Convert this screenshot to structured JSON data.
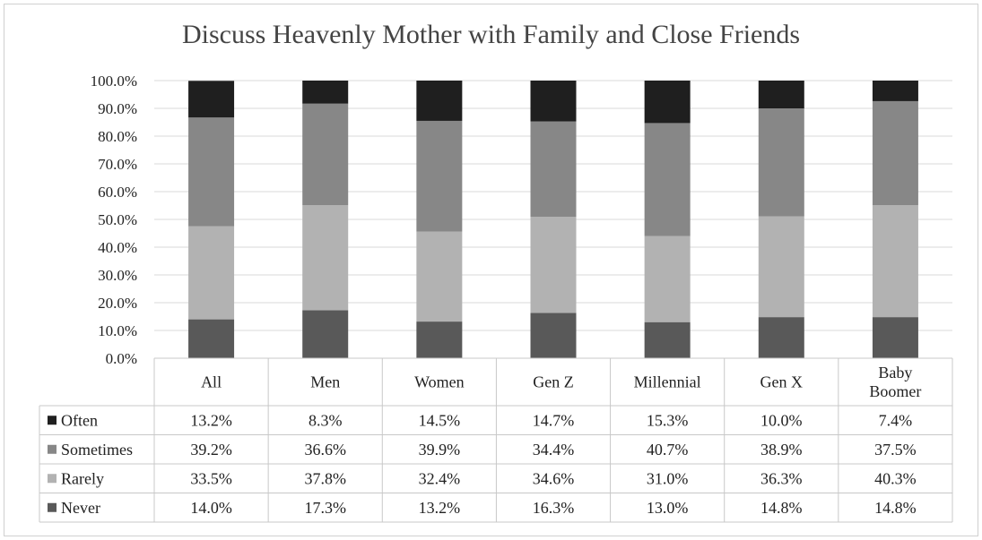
{
  "chart_data": {
    "type": "bar",
    "stacked": true,
    "title": "Discuss Heavenly Mother with Family and Close Friends",
    "categories": [
      "All",
      "Men",
      "Women",
      "Gen Z",
      "Millennial",
      "Gen X",
      "Baby Boomer"
    ],
    "category_lines": [
      [
        "All"
      ],
      [
        "Men"
      ],
      [
        "Women"
      ],
      [
        "Gen Z"
      ],
      [
        "Millennial"
      ],
      [
        "Gen X"
      ],
      [
        "Baby",
        "Boomer"
      ]
    ],
    "ylim": [
      0,
      100
    ],
    "yticks": [
      "0.0%",
      "10.0%",
      "20.0%",
      "30.0%",
      "40.0%",
      "50.0%",
      "60.0%",
      "70.0%",
      "80.0%",
      "90.0%",
      "100.0%"
    ],
    "grid": true,
    "legend": "data-table",
    "series": [
      {
        "name": "Never",
        "color": "#595959",
        "values": [
          14.0,
          17.3,
          13.2,
          16.3,
          13.0,
          14.8,
          14.8
        ],
        "labels": [
          "14.0%",
          "17.3%",
          "13.2%",
          "16.3%",
          "13.0%",
          "14.8%",
          "14.8%"
        ]
      },
      {
        "name": "Rarely",
        "color": "#b2b2b2",
        "values": [
          33.5,
          37.8,
          32.4,
          34.6,
          31.0,
          36.3,
          40.3
        ],
        "labels": [
          "33.5%",
          "37.8%",
          "32.4%",
          "34.6%",
          "31.0%",
          "36.3%",
          "40.3%"
        ]
      },
      {
        "name": "Sometimes",
        "color": "#878787",
        "values": [
          39.2,
          36.6,
          39.9,
          34.4,
          40.7,
          38.9,
          37.5
        ],
        "labels": [
          "39.2%",
          "36.6%",
          "39.9%",
          "34.4%",
          "40.7%",
          "38.9%",
          "37.5%"
        ]
      },
      {
        "name": "Often",
        "color": "#1f1f1f",
        "values": [
          13.2,
          8.3,
          14.5,
          14.7,
          15.3,
          10.0,
          7.4
        ],
        "labels": [
          "13.2%",
          "8.3%",
          "14.5%",
          "14.7%",
          "15.3%",
          "10.0%",
          "7.4%"
        ]
      }
    ],
    "table_row_order": [
      "Often",
      "Sometimes",
      "Rarely",
      "Never"
    ]
  }
}
